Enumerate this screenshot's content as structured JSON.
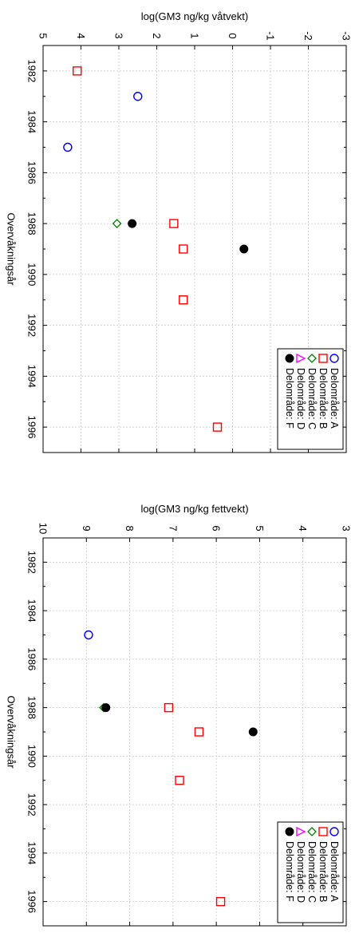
{
  "chart_data": [
    {
      "type": "scatter",
      "xlabel": "Overvåkningsår",
      "ylabel": "log(GM3 ng/kg våtvekt)",
      "xlim": [
        1981,
        1997
      ],
      "ylim": [
        -3,
        5
      ],
      "xticks": [
        1982,
        1984,
        1986,
        1988,
        1990,
        1992,
        1994,
        1996
      ],
      "yticks": [
        -3,
        -2,
        -1,
        0,
        1,
        2,
        3,
        4,
        5
      ],
      "grid": true,
      "legend": "bottom-right",
      "series": [
        {
          "name": "Delområde: A",
          "marker": "circle-open",
          "color": "#0000ff",
          "points": [
            {
              "x": 1983,
              "y": 2.5
            },
            {
              "x": 1985,
              "y": 4.35
            }
          ]
        },
        {
          "name": "Delområde: B",
          "marker": "square-open",
          "color": "#ff0000",
          "points": [
            {
              "x": 1982,
              "y": 4.1
            },
            {
              "x": 1988,
              "y": 1.55
            },
            {
              "x": 1989,
              "y": 1.3
            },
            {
              "x": 1991,
              "y": 1.3
            },
            {
              "x": 1996,
              "y": 0.4
            }
          ]
        },
        {
          "name": "Delområde: C",
          "marker": "diamond-open",
          "color": "#008000",
          "points": [
            {
              "x": 1988,
              "y": 3.05
            }
          ]
        },
        {
          "name": "Delområde: D",
          "marker": "triangle-open",
          "color": "#ff00ff",
          "points": [
            {
              "x": 1996,
              "y": -1.95
            }
          ]
        },
        {
          "name": "Delområde: F",
          "marker": "circle-filled",
          "color": "#000000",
          "points": [
            {
              "x": 1988,
              "y": 2.65
            },
            {
              "x": 1989,
              "y": -0.3
            }
          ]
        }
      ]
    },
    {
      "type": "scatter",
      "xlabel": "Overvåkningsår",
      "ylabel": "log(GM3 ng/kg fettvekt)",
      "xlim": [
        1981,
        1997
      ],
      "ylim": [
        3,
        10
      ],
      "xticks": [
        1982,
        1984,
        1986,
        1988,
        1990,
        1992,
        1994,
        1996
      ],
      "yticks": [
        3,
        4,
        5,
        6,
        7,
        8,
        9,
        10
      ],
      "grid": true,
      "legend": "bottom-right",
      "series": [
        {
          "name": "Delområde: A",
          "marker": "circle-open",
          "color": "#0000ff",
          "points": [
            {
              "x": 1985,
              "y": 8.95
            }
          ]
        },
        {
          "name": "Delområde: B",
          "marker": "square-open",
          "color": "#ff0000",
          "points": [
            {
              "x": 1988,
              "y": 7.1
            },
            {
              "x": 1989,
              "y": 6.4
            },
            {
              "x": 1991,
              "y": 6.85
            },
            {
              "x": 1996,
              "y": 5.9
            }
          ]
        },
        {
          "name": "Delområde: C",
          "marker": "diamond-open",
          "color": "#008000",
          "points": [
            {
              "x": 1988,
              "y": 8.6
            }
          ]
        },
        {
          "name": "Delområde: D",
          "marker": "triangle-open",
          "color": "#ff00ff",
          "points": [
            {
              "x": 1996,
              "y": 3.6
            }
          ]
        },
        {
          "name": "Delområde: F",
          "marker": "circle-filled",
          "color": "#000000",
          "points": [
            {
              "x": 1988,
              "y": 8.55
            },
            {
              "x": 1989,
              "y": 5.15
            }
          ]
        }
      ]
    }
  ]
}
